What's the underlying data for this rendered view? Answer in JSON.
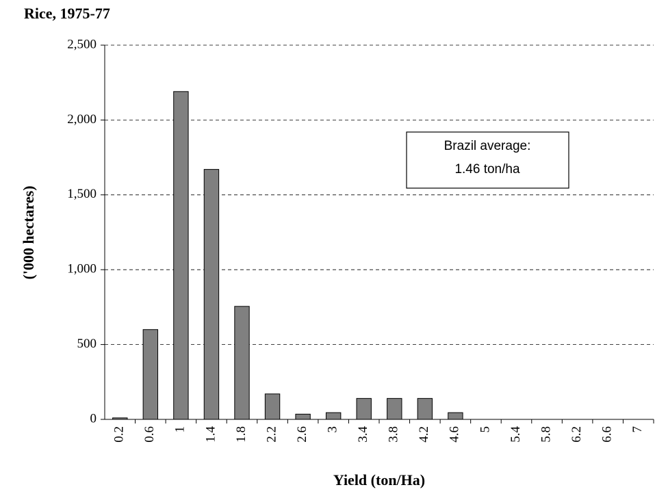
{
  "chart_data": {
    "type": "bar",
    "title": "Rice, 1975-77",
    "x_label": "Yield (ton/Ha)",
    "y_label": "('000 hectares)",
    "annotation": [
      "Brazil average:",
      "1.46 ton/ha"
    ],
    "categories": [
      "0.2",
      "0.6",
      "1",
      "1.4",
      "1.8",
      "2.2",
      "2.6",
      "3",
      "3.4",
      "3.8",
      "4.2",
      "4.6",
      "5",
      "5.4",
      "5.8",
      "6.2",
      "6.6",
      "7"
    ],
    "values": [
      10,
      600,
      2190,
      1670,
      755,
      170,
      35,
      45,
      140,
      140,
      140,
      45,
      0,
      0,
      0,
      0,
      0,
      0
    ],
    "color": "#808080",
    "ylim": [
      0,
      2500
    ],
    "yticks": [
      0,
      500,
      {
        "value": 1000,
        "label": "1,000"
      },
      {
        "value": 1500,
        "label": "1,500"
      },
      {
        "value": 2000,
        "label": "2,000"
      },
      {
        "value": 2500,
        "label": "2,500"
      }
    ],
    "grid": true
  }
}
